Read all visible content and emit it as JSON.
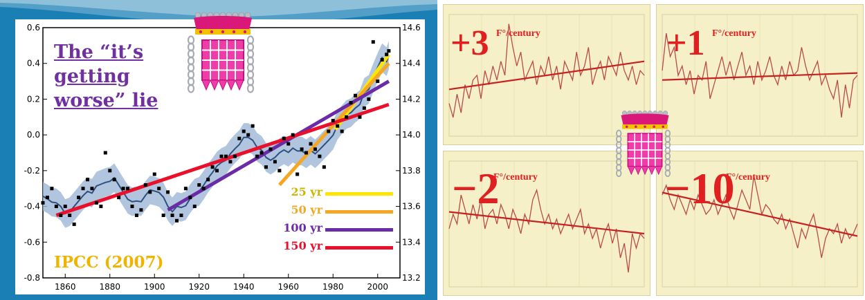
{
  "slide": {
    "title": "The “it’s getting worse” lie",
    "source": "IPCC (2007)"
  },
  "chart_data": [
    {
      "type": "line",
      "title": "",
      "xlabel": "",
      "ylabel": "",
      "x_ticks": [
        "1860",
        "1880",
        "1900",
        "1920",
        "1940",
        "1960",
        "1980",
        "2000"
      ],
      "y_left_ticks": [
        "0.6",
        "0.4",
        "0.2",
        "0.0",
        "-0.2",
        "-0.4",
        "-0.6",
        "-0.8"
      ],
      "y_right_ticks": [
        "14.6",
        "14.4",
        "14.2",
        "14.0",
        "13.8",
        "13.6",
        "13.4",
        "13.2"
      ],
      "xlim": [
        1850,
        2010
      ],
      "ylim": [
        -0.8,
        0.6
      ],
      "legend_position": "bottom-right",
      "series": [
        {
          "name": "",
          "x": [
            1850,
            1852,
            1854,
            1856,
            1858,
            1860,
            1862,
            1864,
            1866,
            1868,
            1870,
            1872,
            1874,
            1876,
            1878,
            1880,
            1882,
            1884,
            1886,
            1888,
            1890,
            1892,
            1894,
            1896,
            1898,
            1900,
            1902,
            1904,
            1906,
            1908,
            1910,
            1912,
            1914,
            1916,
            1918,
            1920,
            1922,
            1924,
            1926,
            1928,
            1930,
            1932,
            1934,
            1936,
            1938,
            1940,
            1942,
            1944,
            1946,
            1948,
            1950,
            1952,
            1954,
            1956,
            1958,
            1960,
            1962,
            1964,
            1966,
            1968,
            1970,
            1972,
            1974,
            1976,
            1978,
            1980,
            1982,
            1984,
            1986,
            1988,
            1990,
            1992,
            1994,
            1996,
            1998,
            2000,
            2002,
            2004,
            2005
          ],
          "y": [
            -0.38,
            -0.35,
            -0.3,
            -0.4,
            -0.45,
            -0.4,
            -0.45,
            -0.5,
            -0.35,
            -0.3,
            -0.25,
            -0.3,
            -0.38,
            -0.4,
            -0.1,
            -0.2,
            -0.25,
            -0.35,
            -0.3,
            -0.3,
            -0.4,
            -0.45,
            -0.42,
            -0.28,
            -0.32,
            -0.22,
            -0.3,
            -0.45,
            -0.32,
            -0.45,
            -0.48,
            -0.45,
            -0.3,
            -0.35,
            -0.4,
            -0.28,
            -0.3,
            -0.25,
            -0.18,
            -0.2,
            -0.12,
            -0.12,
            -0.15,
            -0.12,
            -0.02,
            0.02,
            0.0,
            0.05,
            -0.12,
            -0.1,
            -0.18,
            -0.08,
            -0.15,
            -0.2,
            -0.02,
            -0.05,
            0.0,
            -0.22,
            -0.08,
            -0.1,
            -0.05,
            -0.08,
            -0.12,
            -0.18,
            0.02,
            0.08,
            0.05,
            0.02,
            0.1,
            0.18,
            0.22,
            0.1,
            0.15,
            0.2,
            0.52,
            0.3,
            0.42,
            0.45,
            0.47
          ]
        }
      ],
      "trend_lines": [
        {
          "label": "25 yr",
          "color": "#ffe600",
          "x": [
            1981,
            2005
          ],
          "y": [
            0.03,
            0.45
          ]
        },
        {
          "label": "50 yr",
          "color": "#f5a623",
          "x": [
            1956,
            2005
          ],
          "y": [
            -0.28,
            0.4
          ]
        },
        {
          "label": "100 yr",
          "color": "#6b2aa6",
          "x": [
            1906,
            2005
          ],
          "y": [
            -0.42,
            0.3
          ]
        },
        {
          "label": "150 yr",
          "color": "#e8102a",
          "x": [
            1856,
            2005
          ],
          "y": [
            -0.45,
            0.17
          ]
        }
      ]
    },
    {
      "type": "line",
      "rate": "+3",
      "unit": "F°/century",
      "series": [
        {
          "name": "",
          "y": [
            -0.3,
            -0.6,
            -0.1,
            -0.5,
            0.1,
            -0.2,
            0.2,
            0.3,
            -0.2,
            0.4,
            0.1,
            0.5,
            0.2,
            0.6,
            0.3,
            1.4,
            0.9,
            0.5,
            0.8,
            0.2,
            0.4,
            0.6,
            0.1,
            0.5,
            0.3,
            0.7,
            0.2,
            0.5,
            0.0,
            0.6,
            0.4,
            0.2,
            0.8,
            0.3,
            0.5,
            0.9,
            0.1,
            0.4,
            0.6,
            0.2,
            0.7,
            0.5,
            0.3,
            0.8,
            0.4,
            0.2,
            0.5,
            0.1,
            0.4,
            0.3
          ]
        }
      ],
      "trend": [
        0.0,
        0.6
      ]
    },
    {
      "type": "line",
      "rate": "+1",
      "unit": "F°/century",
      "series": [
        {
          "name": "",
          "y": [
            0.4,
            1.2,
            0.7,
            0.9,
            0.3,
            0.5,
            0.1,
            0.4,
            -0.1,
            0.3,
            0.2,
            0.6,
            -0.2,
            0.1,
            0.4,
            0.7,
            0.3,
            0.6,
            0.2,
            0.5,
            0.8,
            0.3,
            0.5,
            0.1,
            0.6,
            0.2,
            0.4,
            0.7,
            0.3,
            0.1,
            0.5,
            0.2,
            0.6,
            0.3,
            0.4,
            0.9,
            0.5,
            0.2,
            0.4,
            0.6,
            0.1,
            0.3,
            0.0,
            -0.2,
            0.2,
            -0.6,
            0.1,
            -0.4,
            0.2,
            0.3
          ]
        }
      ],
      "trend": [
        0.2,
        0.35
      ]
    },
    {
      "type": "line",
      "rate": "−2",
      "unit": "F°/century",
      "series": [
        {
          "name": "",
          "y": [
            0.2,
            0.5,
            0.3,
            0.9,
            0.6,
            0.3,
            0.7,
            0.4,
            0.8,
            0.2,
            0.5,
            0.6,
            0.3,
            0.7,
            0.5,
            0.2,
            0.6,
            0.4,
            0.1,
            0.5,
            0.3,
            0.8,
            1.0,
            0.6,
            0.3,
            0.5,
            0.2,
            0.4,
            0.1,
            0.3,
            0.5,
            0.2,
            0.4,
            0.6,
            0.1,
            0.3,
            0.0,
            0.2,
            -0.2,
            0.1,
            0.3,
            -0.1,
            0.2,
            -0.4,
            -0.1,
            -0.7,
            0.1,
            -0.2,
            0.1,
            0.0
          ]
        }
      ],
      "trend": [
        0.55,
        0.1
      ]
    },
    {
      "type": "line",
      "rate": "−10",
      "unit": "F°/century",
      "series": [
        {
          "name": "",
          "y": [
            0.9,
            1.1,
            0.8,
            0.6,
            0.9,
            0.7,
            0.5,
            0.8,
            0.6,
            0.9,
            0.7,
            0.5,
            0.6,
            0.8,
            0.5,
            0.7,
            0.9,
            0.6,
            0.4,
            0.7,
            1.0,
            0.8,
            0.6,
            1.3,
            0.9,
            0.5,
            0.7,
            0.6,
            0.4,
            0.3,
            0.5,
            0.2,
            0.4,
            0.1,
            -0.2,
            0.2,
            0.0,
            0.3,
            0.5,
            0.1,
            -0.4,
            0.0,
            0.2,
            0.1,
            0.3,
            -0.1,
            0.2,
            0.0,
            0.1,
            0.3
          ]
        }
      ],
      "trend": [
        0.95,
        0.05
      ]
    }
  ]
}
